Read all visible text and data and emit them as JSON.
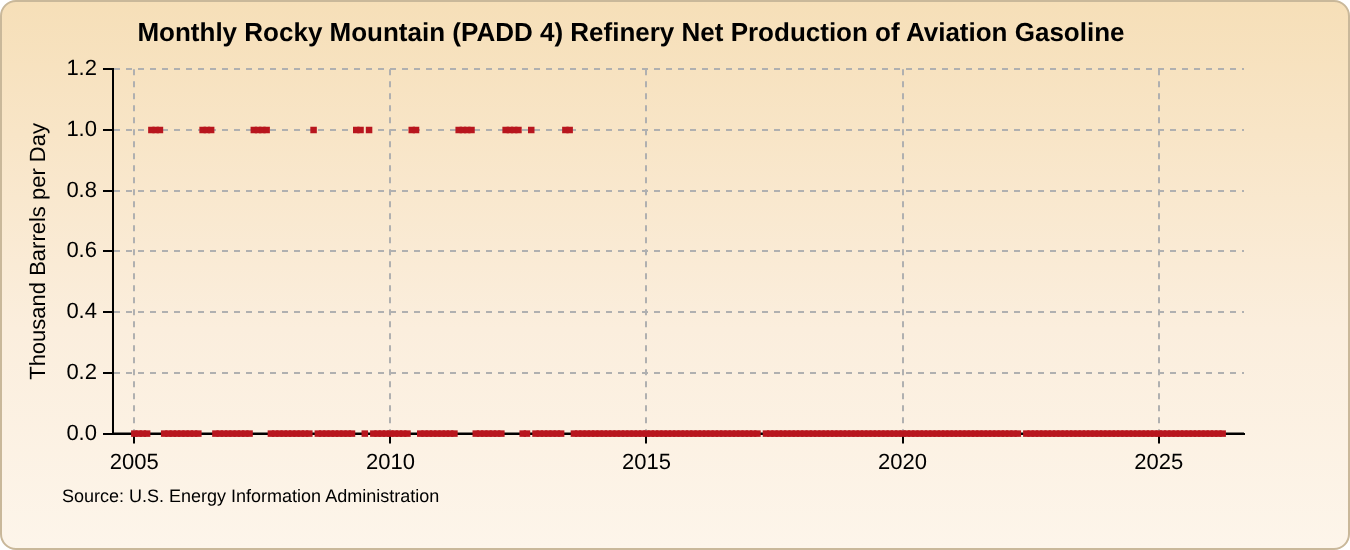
{
  "chart_data": {
    "type": "scatter",
    "title": "Monthly Rocky Mountain (PADD 4) Refinery Net Production of Aviation Gasoline",
    "ylabel": "Thousand Barrels per Day",
    "annotations": [
      "Source: U.S. Energy Information Administration"
    ],
    "x": [
      "2005-01",
      "2005-02",
      "2005-03",
      "2005-04",
      "2005-05",
      "2005-06",
      "2005-07",
      "2005-08",
      "2005-09",
      "2005-10",
      "2005-11",
      "2005-12",
      "2006-01",
      "2006-02",
      "2006-03",
      "2006-04",
      "2006-05",
      "2006-06",
      "2006-07",
      "2006-08",
      "2006-09",
      "2006-10",
      "2006-11",
      "2006-12",
      "2007-01",
      "2007-02",
      "2007-03",
      "2007-04",
      "2007-05",
      "2007-06",
      "2007-07",
      "2007-08",
      "2007-09",
      "2007-10",
      "2007-11",
      "2007-12",
      "2008-01",
      "2008-02",
      "2008-03",
      "2008-04",
      "2008-05",
      "2008-06",
      "2008-07",
      "2008-08",
      "2008-09",
      "2008-10",
      "2008-11",
      "2008-12",
      "2009-01",
      "2009-02",
      "2009-03",
      "2009-04",
      "2009-05",
      "2009-06",
      "2009-07",
      "2009-08",
      "2009-09",
      "2009-10",
      "2009-11",
      "2009-12",
      "2010-01",
      "2010-02",
      "2010-03",
      "2010-04",
      "2010-05",
      "2010-06",
      "2010-07",
      "2010-08",
      "2010-09",
      "2010-10",
      "2010-11",
      "2010-12",
      "2011-01",
      "2011-02",
      "2011-03",
      "2011-04",
      "2011-05",
      "2011-06",
      "2011-07",
      "2011-08",
      "2011-09",
      "2011-10",
      "2011-11",
      "2011-12",
      "2012-01",
      "2012-02",
      "2012-03",
      "2012-04",
      "2012-05",
      "2012-06",
      "2012-07",
      "2012-08",
      "2012-09",
      "2012-10",
      "2012-11",
      "2012-12",
      "2013-01",
      "2013-02",
      "2013-03",
      "2013-04",
      "2013-05",
      "2013-06",
      "2013-07",
      "2013-08",
      "2013-09",
      "2013-10",
      "2013-11",
      "2013-12",
      "2014-01",
      "2014-02",
      "2014-03",
      "2014-04",
      "2014-05",
      "2014-06",
      "2014-07",
      "2014-08",
      "2014-09",
      "2014-10",
      "2014-11",
      "2014-12",
      "2015-01",
      "2015-02",
      "2015-03",
      "2015-04",
      "2015-05",
      "2015-06",
      "2015-07",
      "2015-08",
      "2015-09",
      "2015-10",
      "2015-11",
      "2015-12",
      "2016-01",
      "2016-02",
      "2016-03",
      "2016-04",
      "2016-05",
      "2016-06",
      "2016-07",
      "2016-08",
      "2016-09",
      "2016-10",
      "2016-11",
      "2016-12",
      "2017-01",
      "2017-02",
      "2017-03",
      "2017-04",
      "2017-05",
      "2017-06",
      "2017-07",
      "2017-08",
      "2017-09",
      "2017-10",
      "2017-11",
      "2017-12",
      "2018-01",
      "2018-02",
      "2018-03",
      "2018-04",
      "2018-05",
      "2018-06",
      "2018-07",
      "2018-08",
      "2018-09",
      "2018-10",
      "2018-11",
      "2018-12",
      "2019-01",
      "2019-02",
      "2019-03",
      "2019-04",
      "2019-05",
      "2019-06",
      "2019-07",
      "2019-08",
      "2019-09",
      "2019-10",
      "2019-11",
      "2019-12",
      "2020-01",
      "2020-02",
      "2020-03",
      "2020-04",
      "2020-05",
      "2020-06",
      "2020-07",
      "2020-08",
      "2020-09",
      "2020-10",
      "2020-11",
      "2020-12",
      "2021-01",
      "2021-02",
      "2021-03",
      "2021-04",
      "2021-05",
      "2021-06",
      "2021-07",
      "2021-08",
      "2021-09",
      "2021-10",
      "2021-11",
      "2021-12",
      "2022-01",
      "2022-02",
      "2022-03",
      "2022-04",
      "2022-05",
      "2022-06",
      "2022-07",
      "2022-08",
      "2022-09",
      "2022-10",
      "2022-11",
      "2022-12",
      "2023-01",
      "2023-02",
      "2023-03",
      "2023-04",
      "2023-05",
      "2023-06",
      "2023-07",
      "2023-08",
      "2023-09",
      "2023-10",
      "2023-11",
      "2023-12",
      "2024-01",
      "2024-02",
      "2024-03",
      "2024-04",
      "2024-05",
      "2024-06",
      "2024-07",
      "2024-08",
      "2024-09",
      "2024-10",
      "2024-11",
      "2024-12",
      "2025-01",
      "2025-02",
      "2025-03",
      "2025-04",
      "2025-05",
      "2025-06",
      "2025-07",
      "2025-08",
      "2025-09",
      "2025-10",
      "2025-11",
      "2025-12",
      "2026-01",
      "2026-02",
      "2026-03",
      "2026-04"
    ],
    "series": [
      {
        "color": "#b8161e",
        "values": [
          0,
          0,
          0,
          0,
          1,
          1,
          1,
          0,
          0,
          0,
          0,
          0,
          0,
          0,
          0,
          0,
          1,
          1,
          1,
          0,
          0,
          0,
          0,
          0,
          0,
          0,
          0,
          0,
          1,
          1,
          1,
          1,
          0,
          0,
          0,
          0,
          0,
          0,
          0,
          0,
          0,
          0,
          1,
          0,
          0,
          0,
          0,
          0,
          0,
          0,
          0,
          0,
          1,
          1,
          0,
          1,
          0,
          0,
          0,
          0,
          0,
          0,
          0,
          0,
          0,
          1,
          1,
          0,
          0,
          0,
          0,
          0,
          0,
          0,
          0,
          0,
          1,
          1,
          1,
          1,
          0,
          0,
          0,
          0,
          0,
          0,
          0,
          1,
          1,
          1,
          1,
          0,
          0,
          1,
          0,
          0,
          0,
          0,
          0,
          0,
          0,
          1,
          1,
          0,
          0,
          0,
          0,
          0,
          0,
          0,
          0,
          0,
          0,
          0,
          0,
          0,
          0,
          0,
          0,
          0,
          0,
          0,
          0,
          0,
          0,
          0,
          0,
          0,
          0,
          0,
          0,
          0,
          0,
          0,
          0,
          0,
          0,
          0,
          0,
          0,
          0,
          0,
          0,
          0,
          0,
          0,
          0,
          null,
          0,
          0,
          0,
          0,
          0,
          0,
          0,
          0,
          0,
          0,
          0,
          0,
          0,
          0,
          0,
          0,
          0,
          0,
          0,
          0,
          0,
          0,
          0,
          0,
          0,
          0,
          0,
          0,
          0,
          0,
          0,
          0,
          0,
          0,
          0,
          0,
          0,
          0,
          0,
          0,
          0,
          0,
          0,
          0,
          0,
          0,
          0,
          0,
          0,
          0,
          0,
          0,
          0,
          0,
          0,
          0,
          0,
          0,
          0,
          0,
          null,
          0,
          0,
          0,
          0,
          0,
          0,
          0,
          0,
          0,
          0,
          0,
          0,
          0,
          0,
          0,
          0,
          0,
          0,
          0,
          0,
          0,
          0,
          0,
          0,
          0,
          0,
          0,
          0,
          0,
          0,
          0,
          0,
          0,
          0,
          0,
          0,
          0,
          0,
          0,
          0,
          0,
          0,
          0,
          0,
          0,
          0,
          0
        ]
      }
    ],
    "xlim": [
      "2004-08",
      "2026-09"
    ],
    "xticks": [
      "2005",
      "2010",
      "2015",
      "2020",
      "2025"
    ],
    "ylim": [
      0,
      1.2
    ],
    "yticks": [
      {
        "value": 0,
        "label": "0.0"
      },
      {
        "value": 0.2,
        "label": "0.2"
      },
      {
        "value": 0.4,
        "label": "0.4"
      },
      {
        "value": 0.6,
        "label": "0.6"
      },
      {
        "value": 0.8,
        "label": "0.8"
      },
      {
        "value": 1,
        "label": "1.0"
      },
      {
        "value": 1.2,
        "label": "1.2"
      }
    ],
    "grid": true,
    "legend": false,
    "marker": "square"
  }
}
